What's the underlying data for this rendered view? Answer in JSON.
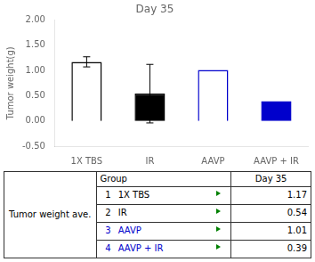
{
  "chart_data": [
    {
      "type": "bar",
      "title": "Day 35",
      "ylabel": "Tumor weight(g)",
      "categories": [
        "1X TBS",
        "IR",
        "AAVP",
        "AAVP + IR"
      ],
      "values": [
        1.17,
        0.54,
        1.01,
        0.39
      ],
      "errors": [
        0.1,
        0.58,
        0.0,
        0.0
      ],
      "colors": [
        "white",
        "black",
        "white",
        "#0000cc"
      ],
      "edge_colors": [
        "black",
        "black",
        "#0000cc",
        "#0000cc"
      ],
      "ylim": [
        -0.5,
        2.0
      ],
      "yticks": [
        {
          "value": -0.5,
          "label": "-0.50"
        },
        {
          "value": 0,
          "label": "0.00"
        },
        {
          "value": 0.5,
          "label": "0.50"
        },
        {
          "value": 1,
          "label": "1.00"
        },
        {
          "value": 1.5,
          "label": "1.50"
        },
        {
          "value": 2,
          "label": "2.00"
        }
      ],
      "grid": false
    },
    {
      "type": "table",
      "title": "Tumor weight ave.",
      "columns": [
        "Group",
        "Day 35"
      ],
      "rows": [
        [
          "1",
          "1X TBS",
          "1.17"
        ],
        [
          "2",
          "IR",
          "0.54"
        ],
        [
          "3",
          "AAVP",
          "1.01"
        ],
        [
          "4",
          "AAVP + IR",
          "0.39"
        ]
      ],
      "colors": [
        "black",
        "black",
        "#0000cc",
        "#0000cc"
      ],
      "marker": "triangle",
      "color": "green"
    }
  ]
}
